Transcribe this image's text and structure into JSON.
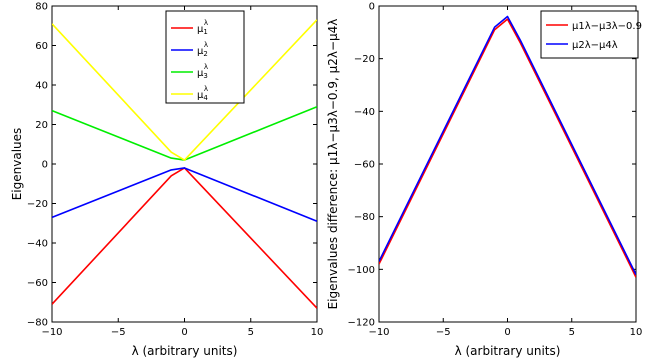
{
  "chart_data": [
    {
      "type": "line",
      "xlabel": "λ (arbitrary units)",
      "ylabel": "Eigenvalues",
      "xlim": [
        -10,
        10
      ],
      "ylim": [
        -80,
        80
      ],
      "xticks": [
        -10,
        -5,
        0,
        5,
        10
      ],
      "xtick_labels": [
        "−10",
        "−5",
        "0",
        "5",
        "10"
      ],
      "yticks": [
        -80,
        -60,
        -40,
        -20,
        0,
        20,
        40,
        60,
        80
      ],
      "ytick_labels": [
        "−80",
        "−60",
        "−40",
        "−20",
        "0",
        "20",
        "40",
        "60",
        "80"
      ],
      "grid": false,
      "legend": "top-right",
      "series": [
        {
          "name": "μ1λ",
          "legend_base": "μ",
          "legend_sub": "1",
          "legend_sup": "λ",
          "color": "#ff0000",
          "x": [
            -10,
            -1,
            0,
            10
          ],
          "y": [
            -71,
            -6,
            -2,
            -73
          ]
        },
        {
          "name": "μ2λ",
          "legend_base": "μ",
          "legend_sub": "2",
          "legend_sup": "λ",
          "color": "#0000ff",
          "x": [
            -10,
            -1,
            0,
            10
          ],
          "y": [
            -27,
            -3,
            -2,
            -29
          ]
        },
        {
          "name": "μ3λ",
          "legend_base": "μ",
          "legend_sub": "3",
          "legend_sup": "λ",
          "color": "#00ee00",
          "x": [
            -10,
            -1,
            0,
            10
          ],
          "y": [
            27,
            3,
            2,
            29
          ]
        },
        {
          "name": "μ4λ",
          "legend_base": "μ",
          "legend_sub": "4",
          "legend_sup": "λ",
          "color": "#ffff00",
          "x": [
            -10,
            -1,
            0,
            10
          ],
          "y": [
            71,
            6,
            2,
            73
          ]
        }
      ]
    },
    {
      "type": "line",
      "xlabel": "λ (arbitrary units)",
      "ylabel": "Eigenvalues difference: μ1λ−μ3λ−0.9, μ2λ−μ4λ",
      "xlim": [
        -10,
        10
      ],
      "ylim": [
        -120,
        0
      ],
      "xticks": [
        -10,
        -5,
        0,
        5,
        10
      ],
      "xtick_labels": [
        "−10",
        "−5",
        "0",
        "5",
        "10"
      ],
      "yticks": [
        -120,
        -100,
        -80,
        -60,
        -40,
        -20,
        0
      ],
      "ytick_labels": [
        "−120",
        "−100",
        "−80",
        "−60",
        "−40",
        "−20",
        "0"
      ],
      "grid": false,
      "legend": "top-right",
      "series": [
        {
          "name": "μ1λ−μ3λ−0.9",
          "color": "#ff0000",
          "x": [
            -10,
            -1,
            0,
            1,
            10
          ],
          "y": [
            -98,
            -9,
            -5,
            -14,
            -103
          ]
        },
        {
          "name": "μ2λ−μ4λ",
          "color": "#0000ff",
          "x": [
            -10,
            -1,
            0,
            1,
            10
          ],
          "y": [
            -97,
            -8,
            -4,
            -13,
            -102
          ]
        }
      ]
    }
  ]
}
